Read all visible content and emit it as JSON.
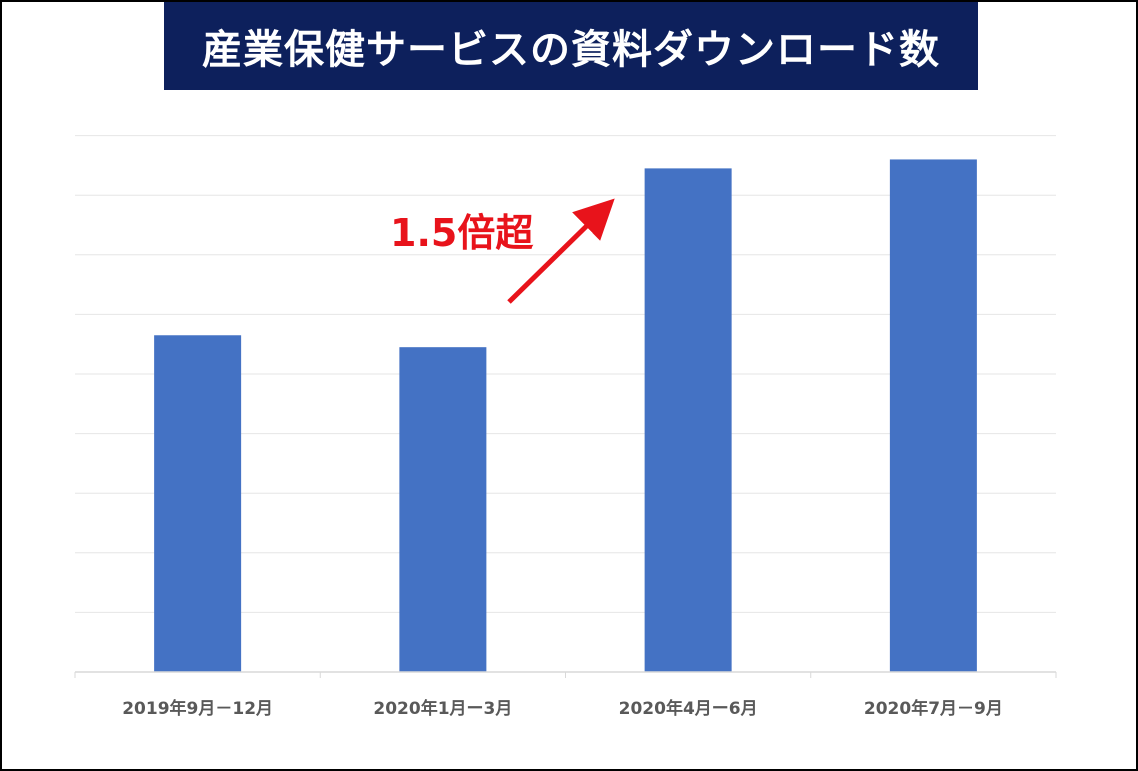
{
  "colors": {
    "title_bg": "#0d205c",
    "bar": "#4472c4",
    "annotation": "#e8131b",
    "grid": "#e6e6e6",
    "tick_text": "#595959"
  },
  "chart_data": {
    "type": "bar",
    "title": "産業保健サービスの資料ダウンロード数",
    "categories": [
      "2019年9月－12月",
      "2020年1月ー3月",
      "2020年4月ー6月",
      "2020年7月－9月"
    ],
    "values": [
      56.5,
      54.5,
      84.5,
      86
    ],
    "ylim": [
      0,
      90
    ],
    "grid": true,
    "gridline_step": 10,
    "y_tick_labels_shown": false,
    "legend": "none",
    "annotation": {
      "text": "1.5倍超",
      "icon": "up-right-arrow",
      "from_category": "2020年1月ー3月",
      "to_category": "2020年4月ー6月"
    }
  }
}
